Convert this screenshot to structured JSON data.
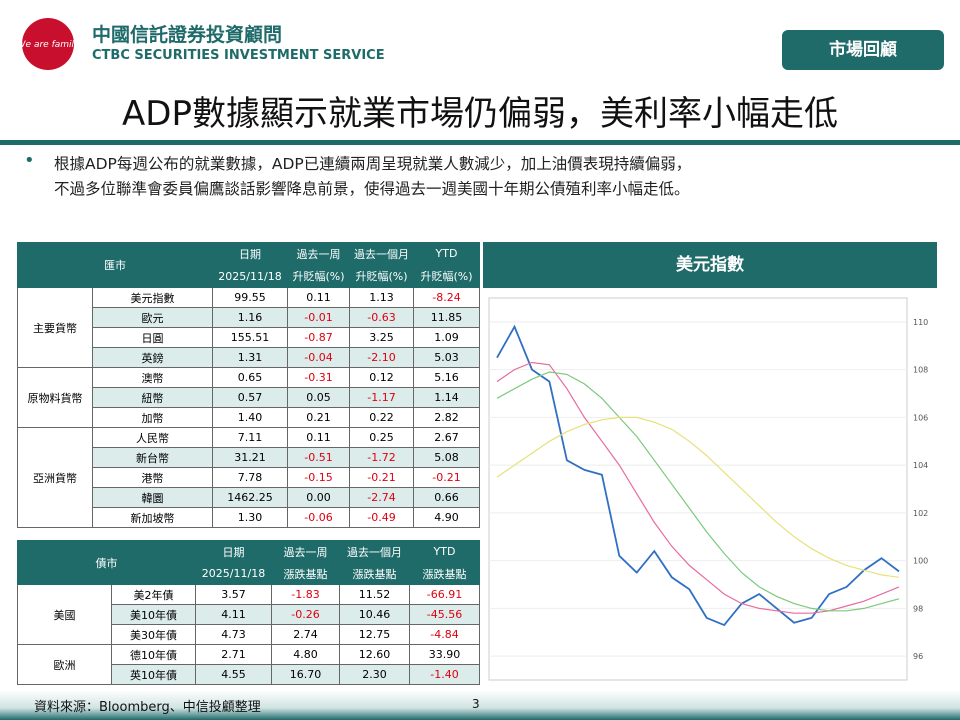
{
  "header": {
    "company_zh": "中國信託證券投資顧問",
    "company_en": "CTBC SECURITIES INVESTMENT SERVICE",
    "logo_text": "We are family",
    "section_label": "市場回顧",
    "title": "ADP數據顯示就業市場仍偏弱，美利率小幅走低",
    "bullet": [
      "根據ADP每週公布的就業數據，ADP已連續兩周呈現就業人數減少，加上油價表現持續偏弱，",
      "不過多位聯準會委員偏鷹談話影響降息前景，使得過去一週美國十年期公債殖利率小幅走低。"
    ]
  },
  "fx_table": {
    "columns_top": [
      "匯市",
      "日期",
      "過去一周",
      "過去一個月",
      "YTD"
    ],
    "columns_sub": [
      "2025/11/18",
      "升貶幅(%)",
      "升貶幅(%)",
      "升貶幅(%)"
    ],
    "groups": [
      {
        "name": "主要貨幣",
        "rows": [
          [
            "美元指數",
            "99.55",
            "0.11",
            "1.13",
            "-8.24"
          ],
          [
            "歐元",
            "1.16",
            "-0.01",
            "-0.63",
            "11.85"
          ],
          [
            "日圓",
            "155.51",
            "-0.87",
            "3.25",
            "1.09"
          ],
          [
            "英鎊",
            "1.31",
            "-0.04",
            "-2.10",
            "5.03"
          ]
        ]
      },
      {
        "name": "原物料貨幣",
        "rows": [
          [
            "澳幣",
            "0.65",
            "-0.31",
            "0.12",
            "5.16"
          ],
          [
            "紐幣",
            "0.57",
            "0.05",
            "-1.17",
            "1.14"
          ],
          [
            "加幣",
            "1.40",
            "0.21",
            "0.22",
            "2.82"
          ]
        ]
      },
      {
        "name": "亞洲貨幣",
        "rows": [
          [
            "人民幣",
            "7.11",
            "0.11",
            "0.25",
            "2.67"
          ],
          [
            "新台幣",
            "31.21",
            "-0.51",
            "-1.72",
            "5.08"
          ],
          [
            "港幣",
            "7.78",
            "-0.15",
            "-0.21",
            "-0.21"
          ],
          [
            "韓圜",
            "1462.25",
            "0.00",
            "-2.74",
            "0.66"
          ],
          [
            "新加坡幣",
            "1.30",
            "-0.06",
            "-0.49",
            "4.90"
          ]
        ]
      }
    ]
  },
  "bond_table": {
    "columns_top": [
      "債市",
      "日期",
      "過去一周",
      "過去一個月",
      "YTD"
    ],
    "columns_sub": [
      "2025/11/18",
      "漲跌基點",
      "漲跌基點",
      "漲跌基點"
    ],
    "groups": [
      {
        "name": "美國",
        "rows": [
          [
            "美2年債",
            "3.57",
            "-1.83",
            "11.52",
            "-66.91"
          ],
          [
            "美10年債",
            "4.11",
            "-0.26",
            "10.46",
            "-45.56"
          ],
          [
            "美30年債",
            "4.73",
            "2.74",
            "12.75",
            "-4.84"
          ]
        ]
      },
      {
        "name": "歐洲",
        "rows": [
          [
            "德10年債",
            "2.71",
            "4.80",
            "12.60",
            "33.90"
          ],
          [
            "英10年債",
            "4.55",
            "16.70",
            "2.30",
            "-1.40"
          ]
        ]
      }
    ]
  },
  "chart_data": {
    "type": "line",
    "title": "美元指數",
    "ylim": [
      95,
      111
    ],
    "yticks": [
      96,
      98,
      100,
      102,
      104,
      106,
      108,
      110
    ],
    "grid": true,
    "series": [
      {
        "color": "#2f6fc4",
        "values": [
          108.5,
          109.8,
          108.0,
          107.5,
          104.2,
          103.8,
          103.6,
          100.2,
          99.5,
          100.4,
          99.3,
          98.8,
          97.6,
          97.3,
          98.2,
          98.6,
          98.0,
          97.4,
          97.6,
          98.6,
          98.9,
          99.6,
          100.1,
          99.55
        ]
      },
      {
        "color": "#e86aa0",
        "values": [
          107.5,
          108,
          108.3,
          108.2,
          107.2,
          106,
          105,
          104,
          102.8,
          101.6,
          100.6,
          99.8,
          99.2,
          98.6,
          98.2,
          98.0,
          97.9,
          97.8,
          97.8,
          97.9,
          98.1,
          98.3,
          98.6,
          98.9
        ]
      },
      {
        "color": "#7cc97c",
        "values": [
          106.8,
          107.2,
          107.6,
          107.9,
          107.8,
          107.4,
          106.8,
          106,
          105.2,
          104.2,
          103.2,
          102.2,
          101.2,
          100.3,
          99.5,
          98.9,
          98.5,
          98.2,
          98.0,
          97.9,
          97.9,
          98.0,
          98.2,
          98.4
        ]
      },
      {
        "color": "#e8e07a",
        "values": [
          103.5,
          104,
          104.5,
          105,
          105.4,
          105.7,
          105.9,
          106,
          106,
          105.8,
          105.5,
          105,
          104.4,
          103.7,
          103,
          102.3,
          101.6,
          101,
          100.5,
          100.1,
          99.8,
          99.6,
          99.4,
          99.3
        ]
      }
    ]
  },
  "footer": {
    "source": "資料來源：Bloomberg、中信投顧整理",
    "page": "3"
  }
}
